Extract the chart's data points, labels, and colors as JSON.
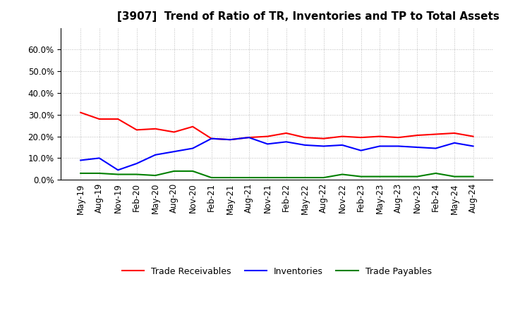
{
  "title": "[3907]  Trend of Ratio of TR, Inventories and TP to Total Assets",
  "x_labels": [
    "May-19",
    "Aug-19",
    "Nov-19",
    "Feb-20",
    "May-20",
    "Aug-20",
    "Nov-20",
    "Feb-21",
    "May-21",
    "Aug-21",
    "Nov-21",
    "Feb-22",
    "May-22",
    "Aug-22",
    "Nov-22",
    "Feb-23",
    "May-23",
    "Aug-23",
    "Nov-23",
    "Feb-24",
    "May-24",
    "Aug-24"
  ],
  "trade_receivables": [
    0.31,
    0.28,
    0.28,
    0.23,
    0.235,
    0.22,
    0.245,
    0.19,
    0.185,
    0.195,
    0.2,
    0.215,
    0.195,
    0.19,
    0.2,
    0.195,
    0.2,
    0.195,
    0.205,
    0.21,
    0.215,
    0.2
  ],
  "inventories": [
    0.09,
    0.1,
    0.045,
    0.075,
    0.115,
    0.13,
    0.145,
    0.19,
    0.185,
    0.195,
    0.165,
    0.175,
    0.16,
    0.155,
    0.16,
    0.135,
    0.155,
    0.155,
    0.15,
    0.145,
    0.17,
    0.155
  ],
  "trade_payables": [
    0.03,
    0.03,
    0.025,
    0.025,
    0.02,
    0.04,
    0.04,
    0.01,
    0.01,
    0.01,
    0.01,
    0.01,
    0.01,
    0.01,
    0.025,
    0.015,
    0.015,
    0.015,
    0.015,
    0.03,
    0.015,
    0.015
  ],
  "ylim": [
    0.0,
    0.7
  ],
  "yticks": [
    0.0,
    0.1,
    0.2,
    0.3,
    0.4,
    0.5,
    0.6
  ],
  "line_colors": {
    "trade_receivables": "#FF0000",
    "inventories": "#0000FF",
    "trade_payables": "#008000"
  },
  "legend_labels": [
    "Trade Receivables",
    "Inventories",
    "Trade Payables"
  ],
  "background_color": "#FFFFFF",
  "grid_color": "#BBBBBB",
  "title_fontsize": 11,
  "tick_fontsize": 8.5,
  "legend_fontsize": 9
}
